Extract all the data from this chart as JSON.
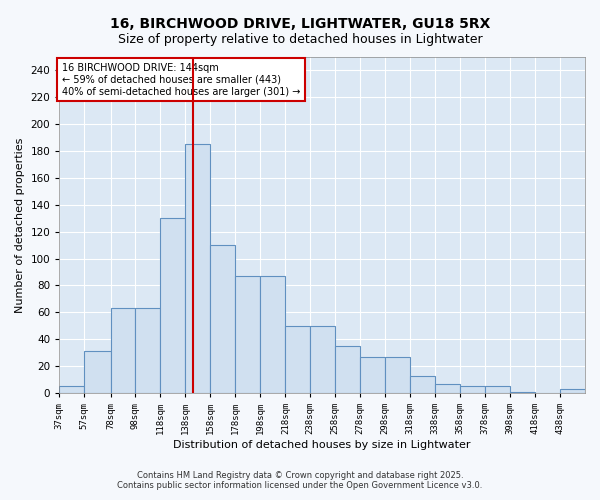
{
  "title_line1": "16, BIRCHWOOD DRIVE, LIGHTWATER, GU18 5RX",
  "title_line2": "Size of property relative to detached houses in Lightwater",
  "xlabel": "Distribution of detached houses by size in Lightwater",
  "ylabel": "Number of detached properties",
  "bar_color": "#d0e0f0",
  "bar_edge_color": "#6090c0",
  "bin_edges": [
    37,
    57,
    78,
    98,
    118,
    138,
    158,
    178,
    198,
    218,
    238,
    258,
    278,
    298,
    318,
    338,
    358,
    378,
    398,
    418,
    438,
    458
  ],
  "values": [
    5,
    31,
    63,
    63,
    130,
    185,
    110,
    87,
    87,
    50,
    50,
    35,
    27,
    27,
    13,
    7,
    5,
    5,
    1,
    0,
    3
  ],
  "tick_labels": [
    "37sqm",
    "57sqm",
    "78sqm",
    "98sqm",
    "118sqm",
    "138sqm",
    "158sqm",
    "178sqm",
    "198sqm",
    "218sqm",
    "238sqm",
    "258sqm",
    "278sqm",
    "298sqm",
    "318sqm",
    "338sqm",
    "358sqm",
    "378sqm",
    "398sqm",
    "418sqm",
    "438sqm"
  ],
  "vline_x": 144,
  "vline_color": "#cc0000",
  "ylim": [
    0,
    250
  ],
  "yticks": [
    0,
    20,
    40,
    60,
    80,
    100,
    120,
    140,
    160,
    180,
    200,
    220,
    240
  ],
  "annotation_title": "16 BIRCHWOOD DRIVE: 144sqm",
  "annotation_line1": "← 59% of detached houses are smaller (443)",
  "annotation_line2": "40% of semi-detached houses are larger (301) →",
  "annotation_box_color": "#ffffff",
  "annotation_box_edge": "#cc0000",
  "plot_bg_color": "#dce8f4",
  "fig_bg_color": "#f5f8fc",
  "footnote": "Contains HM Land Registry data © Crown copyright and database right 2025.\nContains public sector information licensed under the Open Government Licence v3.0.",
  "grid_color": "#ffffff",
  "title_fontsize": 10,
  "subtitle_fontsize": 9,
  "label_fontsize": 8
}
